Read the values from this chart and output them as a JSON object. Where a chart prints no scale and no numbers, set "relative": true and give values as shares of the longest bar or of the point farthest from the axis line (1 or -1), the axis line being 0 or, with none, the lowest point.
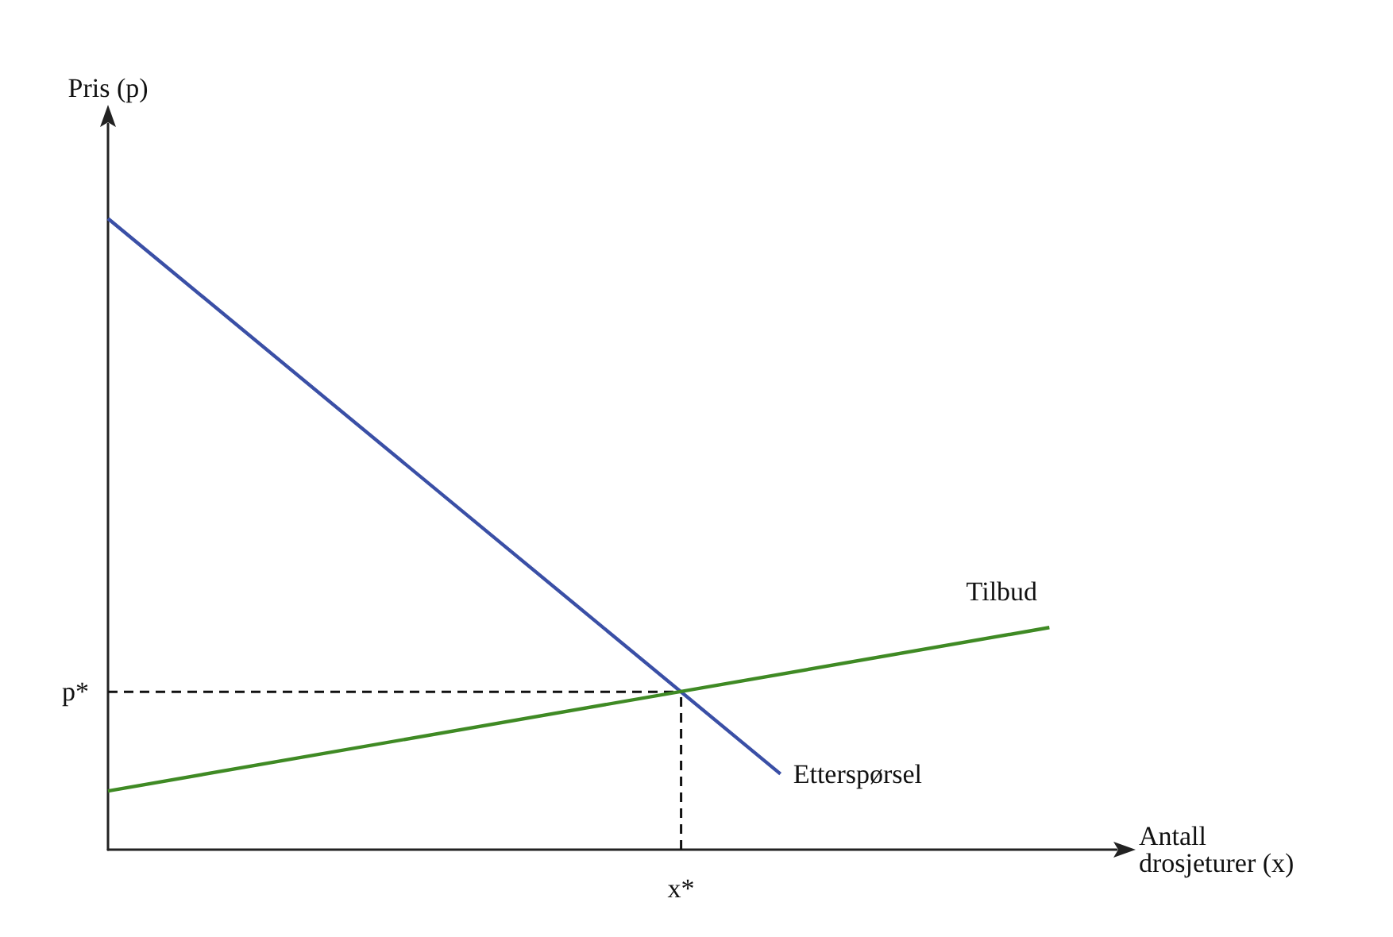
{
  "chart_data": {
    "type": "line",
    "relative": true,
    "xlabel": "Antall\ndrosjeturer (x)",
    "ylabel": "Pris (p)",
    "legend": false,
    "grid": false,
    "marker": "none",
    "categories": [
      null,
      null,
      null,
      null,
      null,
      null,
      null,
      null,
      null,
      null,
      null,
      null,
      null,
      null,
      null,
      null,
      null,
      null,
      null,
      null,
      null,
      null,
      null,
      null,
      null,
      null,
      null,
      null,
      null,
      null,
      null
    ],
    "series": [
      {
        "name": "Etterspørsel",
        "color": "#3a4fa6",
        "values": [
          1,
          null,
          null,
          null,
          null,
          null,
          null,
          null,
          null,
          null,
          null,
          null,
          null,
          null,
          null,
          null,
          null,
          null,
          null,
          null,
          0.12,
          null,
          null,
          null,
          null,
          null,
          null,
          null,
          null,
          null,
          null
        ]
      },
      {
        "name": "Tilbud",
        "color": "#3f8a24",
        "values": [
          0.093,
          null,
          null,
          null,
          null,
          null,
          null,
          null,
          null,
          null,
          null,
          null,
          null,
          null,
          null,
          null,
          null,
          null,
          null,
          null,
          null,
          null,
          null,
          null,
          null,
          null,
          null,
          null,
          0.352,
          null,
          null
        ]
      }
    ],
    "ref_lines": [
      {
        "axis": "y",
        "value": 0.25,
        "label": "p*",
        "color": "#111111",
        "line_style": "dashed"
      }
    ],
    "annotations": [
      "x*"
    ]
  }
}
